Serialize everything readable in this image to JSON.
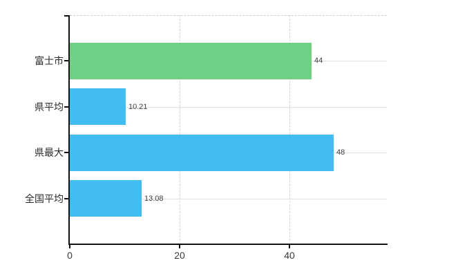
{
  "chart": {
    "background_color": "#ffffff",
    "axis_color": "#111111",
    "h_gridline_color": "#dde3db",
    "v_gridline_color": "#d4d4d4",
    "top_border_color": "#cccccc",
    "category_label_color": "#2b2b2b",
    "value_label_color": "#3c3c3c",
    "tick_label_color": "#3c3c3c"
  },
  "chart_data": {
    "type": "bar",
    "orientation": "horizontal",
    "title": "",
    "xlabel": "",
    "ylabel": "",
    "categories": [
      "富士市",
      "県平均",
      "県最大",
      "全国平均"
    ],
    "values": [
      44,
      10.21,
      48,
      13.08
    ],
    "value_labels": [
      "44",
      "10.21",
      "48",
      "13.08"
    ],
    "bar_colors": [
      "#6fcf85",
      "#41bdf2",
      "#41bdf2",
      "#41bdf2"
    ],
    "x_ticks": [
      0,
      20,
      40
    ],
    "x_tick_labels": [
      "0",
      "20",
      "40"
    ],
    "xlim": [
      0,
      57.65
    ],
    "grid": true,
    "legend_position": "none"
  }
}
